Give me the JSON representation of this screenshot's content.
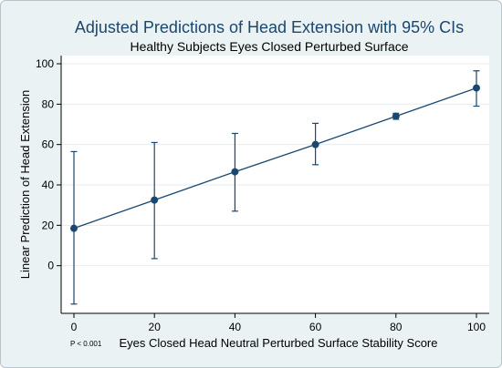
{
  "chart_data": {
    "type": "scatter",
    "title": "Adjusted Predictions of Head Extension with 95% CIs",
    "subtitle": "Healthy Subjects Eyes Closed Perturbed Surface",
    "xlabel": "Eyes Closed Head Neutral Perturbed Surface Stability Score",
    "ylabel": "Linear Prediction of Head Extension",
    "note": "P < 0.001",
    "xlim": [
      0,
      100
    ],
    "ylim": [
      -20,
      100
    ],
    "xticks": [
      0,
      20,
      40,
      60,
      80,
      100
    ],
    "yticks": [
      0,
      20,
      40,
      60,
      80,
      100
    ],
    "grid": "horizontal",
    "series": [
      {
        "x": [
          0,
          20,
          40,
          60,
          80,
          100
        ],
        "y": [
          18.5,
          32.5,
          46.5,
          60.0,
          74.0,
          88.0
        ],
        "ci_low": [
          -19.0,
          3.5,
          27.0,
          50.0,
          72.5,
          79.0
        ],
        "ci_high": [
          56.5,
          61.0,
          65.5,
          70.5,
          75.5,
          96.5
        ]
      }
    ],
    "colors": {
      "background": "#eaf2f3",
      "plot_area": "#ffffff",
      "series": "#1a476f",
      "grid": "#e6ecf0"
    }
  }
}
